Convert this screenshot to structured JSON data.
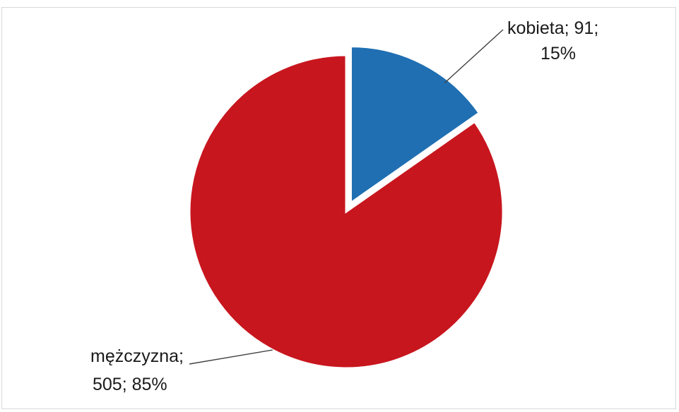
{
  "chart_data": {
    "type": "pie",
    "series": [
      {
        "values": [
          91,
          505
        ],
        "categories": [
          "kobieta",
          "mężczyzna"
        ]
      }
    ],
    "slices": [
      {
        "category": "kobieta",
        "value": 91,
        "percent": 15,
        "color": "#1f6fb2",
        "exploded": true,
        "label_lines": [
          "kobieta; 91;",
          "15%"
        ]
      },
      {
        "category": "mężczyzna",
        "value": 505,
        "percent": 85,
        "color": "#c8161e",
        "exploded": false,
        "label_lines": [
          "mężczyzna;",
          "505; 85%"
        ]
      }
    ],
    "start_angle_deg": 0,
    "direction": "clockwise",
    "legend": "none"
  }
}
